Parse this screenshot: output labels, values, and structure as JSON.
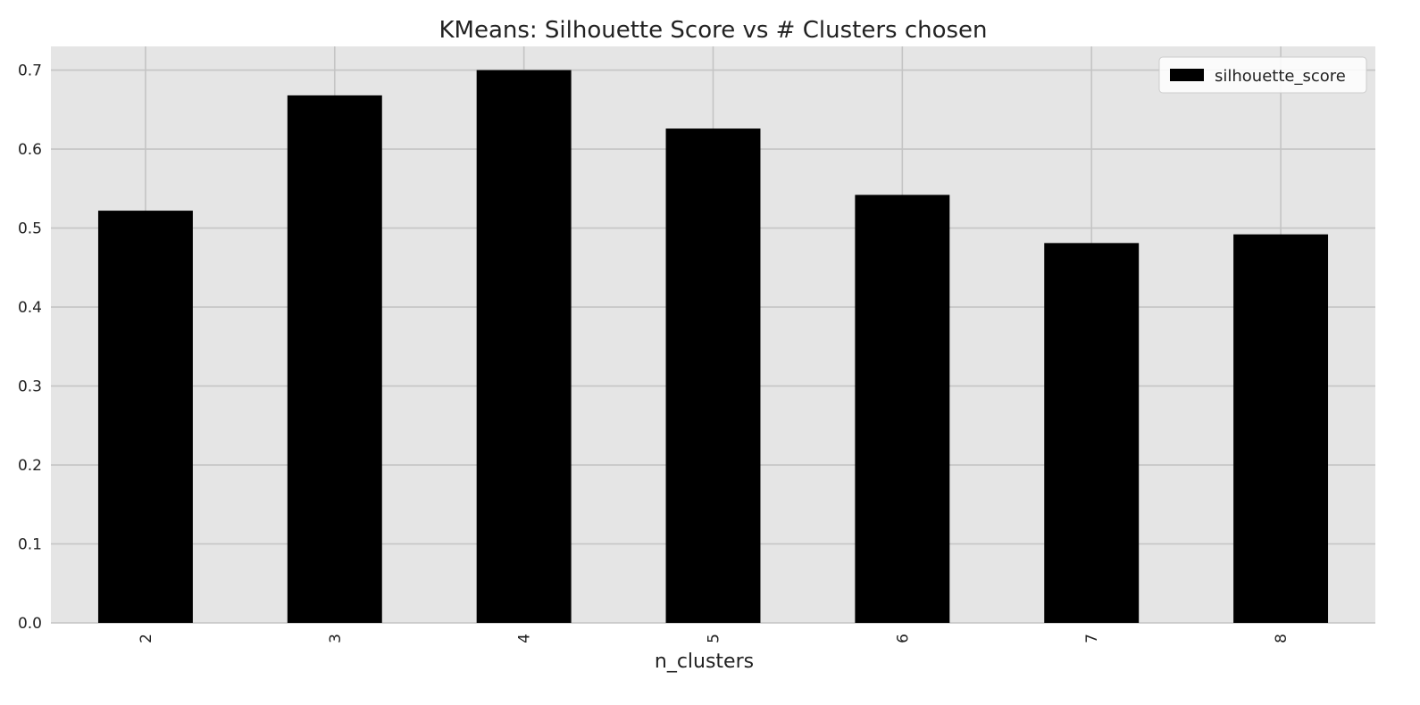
{
  "chart_data": {
    "type": "bar",
    "title": "KMeans: Silhouette Score vs # Clusters chosen",
    "xlabel": "n_clusters",
    "ylabel": "",
    "categories": [
      "2",
      "3",
      "4",
      "5",
      "6",
      "7",
      "8"
    ],
    "series": [
      {
        "name": "silhouette_score",
        "values": [
          0.522,
          0.668,
          0.7,
          0.626,
          0.542,
          0.481,
          0.492
        ]
      }
    ],
    "ylim": [
      0.0,
      0.73
    ],
    "yticks": [
      "0.0",
      "0.1",
      "0.2",
      "0.3",
      "0.4",
      "0.5",
      "0.6",
      "0.7"
    ],
    "grid": true,
    "legend_position": "top-right",
    "x_tick_rotation": "vertical",
    "colors": {
      "bar": "#000000",
      "plot_background": "#e5e5e5",
      "grid": "#c4c4c4",
      "legend_background": "#ffffff",
      "text": "#222222"
    }
  }
}
